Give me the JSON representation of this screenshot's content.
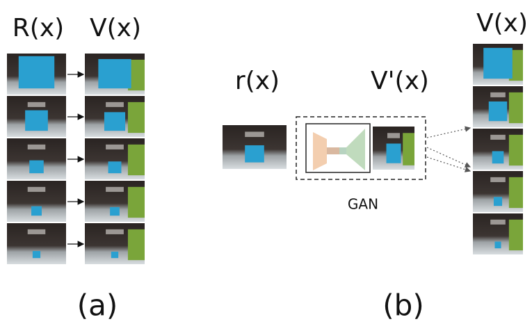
{
  "panel_a": {
    "left_label": "R(x)",
    "right_label": "V(x)",
    "caption": "(a)"
  },
  "panel_b": {
    "input_label": "r(x)",
    "generated_label": "V'(x)",
    "model_label": "GAN",
    "output_label": "V(x)",
    "caption": "(b)"
  }
}
